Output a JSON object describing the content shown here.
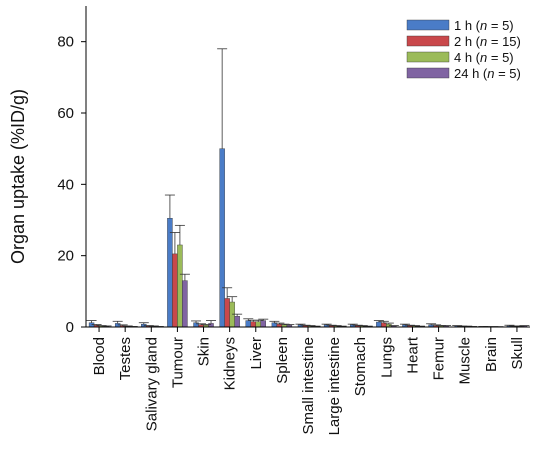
{
  "chart_data": {
    "type": "bar",
    "title": "",
    "xlabel": "",
    "ylabel": "Organ uptake (%ID/g)",
    "ylim": [
      0,
      90
    ],
    "yticks": [
      0,
      20,
      40,
      60,
      80
    ],
    "grid": false,
    "legend_position": "top-right",
    "error_bars": true,
    "categories": [
      "Blood",
      "Testes",
      "Salivary gland",
      "Tumour",
      "Skin",
      "Kidneys",
      "Liver",
      "Spleen",
      "Small intestine",
      "Large intestine",
      "Stomach",
      "Lungs",
      "Heart",
      "Femur",
      "Muscle",
      "Brain",
      "Skull"
    ],
    "series": [
      {
        "name": "1 h (n = 5)",
        "legend": {
          "pre": "1 h (",
          "n": "n",
          "post": " = 5)"
        },
        "color": "#4a7cc7",
        "values": [
          1.2,
          1.0,
          0.8,
          30.5,
          1.2,
          50.0,
          1.8,
          1.2,
          0.6,
          0.6,
          0.6,
          1.4,
          0.6,
          0.6,
          0.3,
          0.1,
          0.3
        ],
        "errors": [
          0.6,
          0.6,
          0.4,
          6.5,
          0.5,
          28.0,
          0.5,
          0.4,
          0.2,
          0.2,
          0.2,
          0.4,
          0.2,
          0.3,
          0.1,
          0.05,
          0.2
        ]
      },
      {
        "name": "2 h (n = 15)",
        "legend": {
          "pre": "2 h (",
          "n": "n",
          "post": " = 15)"
        },
        "color": "#c9484b",
        "values": [
          0.5,
          0.4,
          0.3,
          20.5,
          0.6,
          8.0,
          1.5,
          0.8,
          0.4,
          0.4,
          0.4,
          1.2,
          0.4,
          0.4,
          0.2,
          0.05,
          0.2
        ],
        "errors": [
          0.2,
          0.2,
          0.1,
          6.0,
          0.3,
          3.0,
          0.4,
          0.3,
          0.1,
          0.1,
          0.1,
          0.4,
          0.1,
          0.2,
          0.05,
          0.05,
          0.1
        ]
      },
      {
        "name": "4 h (n = 5)",
        "legend": {
          "pre": "4 h (",
          "n": "n",
          "post": " = 5)"
        },
        "color": "#9bbb59",
        "values": [
          0.3,
          0.2,
          0.2,
          23.0,
          0.5,
          7.0,
          1.5,
          0.6,
          0.3,
          0.3,
          0.3,
          0.8,
          0.3,
          0.3,
          0.2,
          0.05,
          0.2
        ],
        "errors": [
          0.1,
          0.1,
          0.1,
          5.5,
          0.2,
          1.5,
          0.4,
          0.2,
          0.1,
          0.1,
          0.1,
          0.3,
          0.1,
          0.1,
          0.05,
          0.05,
          0.1
        ]
      },
      {
        "name": "24 h (n = 5)",
        "legend": {
          "pre": "24 h (",
          "n": "n",
          "post": " = 5)"
        },
        "color": "#8064a2",
        "values": [
          0.2,
          0.1,
          0.1,
          13.0,
          1.0,
          3.0,
          1.8,
          0.5,
          0.2,
          0.2,
          0.2,
          0.3,
          0.2,
          0.3,
          0.1,
          0.05,
          0.3
        ],
        "errors": [
          0.1,
          0.05,
          0.05,
          1.8,
          0.8,
          0.6,
          0.4,
          0.2,
          0.05,
          0.05,
          0.05,
          0.1,
          0.05,
          0.1,
          0.05,
          0.05,
          0.1
        ]
      }
    ]
  }
}
